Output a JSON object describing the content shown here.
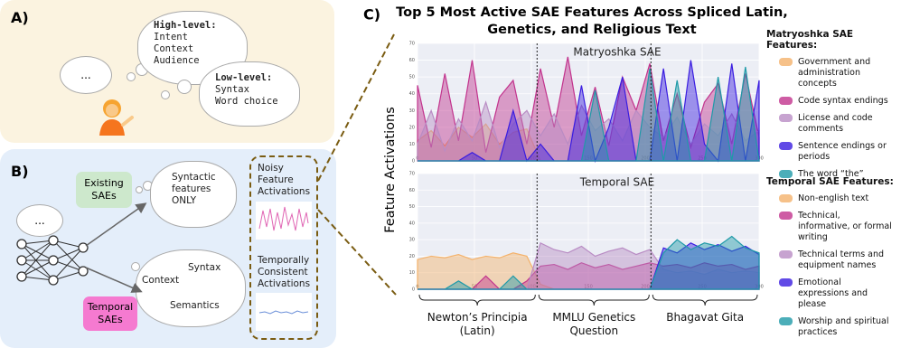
{
  "panel_a": {
    "label": "A)",
    "speech": "...",
    "high_level": {
      "heading": "High-level:",
      "items": [
        "Intent",
        "Context",
        "Audience"
      ]
    },
    "low_level": {
      "heading": "Low-level:",
      "items": [
        "Syntax",
        "Word choice"
      ]
    }
  },
  "panel_b": {
    "label": "B)",
    "speech": "...",
    "existing": {
      "label": "Existing SAEs",
      "thought": [
        "Syntactic",
        "features",
        "ONLY"
      ]
    },
    "temporal": {
      "label": "Temporal SAEs",
      "thought": [
        "Context",
        "Syntax",
        "Semantics"
      ]
    },
    "noisy": [
      "Noisy",
      "Feature",
      "Activations"
    ],
    "consistent": [
      "Temporally",
      "Consistent",
      "Activations"
    ]
  },
  "panel_c": {
    "label": "C)",
    "title": [
      "Top 5 Most Active SAE Features Across Spliced Latin,",
      "Genetics, and Religious Text"
    ],
    "y_label": "Feature Activations",
    "segments": [
      {
        "label": "Newton’s Principia (Latin)",
        "range": [
          0,
          105
        ]
      },
      {
        "label": "MMLU Genetics Question",
        "range": [
          105,
          205
        ]
      },
      {
        "label": "Bhagavat Gita",
        "range": [
          205,
          300
        ]
      }
    ]
  },
  "chart_data": [
    {
      "type": "area",
      "title": "Matryoshka SAE",
      "legend_title": "Matryoshka SAE Features:",
      "xlim": [
        0,
        300
      ],
      "xticks": [
        0,
        50,
        100,
        150,
        200,
        250,
        300
      ],
      "ylim": [
        0,
        70
      ],
      "yticks": [
        0,
        10,
        20,
        30,
        40,
        50,
        60,
        70
      ],
      "grid": true,
      "x": [
        0,
        12,
        24,
        36,
        48,
        60,
        72,
        84,
        96,
        108,
        120,
        132,
        144,
        156,
        168,
        180,
        192,
        204,
        216,
        228,
        240,
        252,
        264,
        276,
        288,
        300
      ],
      "series": [
        {
          "name": "Government and administration concepts",
          "color": "#f4b26b",
          "values": [
            12,
            18,
            9,
            20,
            14,
            22,
            10,
            17,
            19,
            0,
            0,
            0,
            0,
            0,
            0,
            0,
            0,
            0,
            0,
            0,
            0,
            0,
            0,
            0,
            0,
            0
          ]
        },
        {
          "name": "Code syntax endings",
          "color": "#c2338d",
          "values": [
            45,
            8,
            52,
            12,
            60,
            5,
            38,
            48,
            10,
            55,
            20,
            62,
            15,
            44,
            9,
            50,
            30,
            58,
            12,
            40,
            8,
            35,
            46,
            10,
            52,
            14
          ]
        },
        {
          "name": "License and code comments",
          "color": "#b98cc4",
          "values": [
            10,
            30,
            6,
            25,
            12,
            35,
            8,
            22,
            30,
            15,
            28,
            10,
            33,
            18,
            25,
            12,
            30,
            20,
            14,
            26,
            10,
            22,
            15,
            28,
            12,
            18
          ]
        },
        {
          "name": "Sentence endings or periods",
          "color": "#3a1de0",
          "values": [
            0,
            0,
            0,
            0,
            5,
            0,
            0,
            30,
            0,
            10,
            0,
            0,
            45,
            0,
            20,
            50,
            0,
            0,
            55,
            0,
            60,
            10,
            0,
            58,
            0,
            48
          ]
        },
        {
          "name": "The word “the”",
          "color": "#1f9aa8",
          "values": [
            0,
            0,
            0,
            0,
            0,
            0,
            0,
            0,
            0,
            0,
            0,
            0,
            0,
            42,
            0,
            0,
            0,
            55,
            0,
            48,
            0,
            0,
            50,
            0,
            56,
            0
          ]
        }
      ]
    },
    {
      "type": "area",
      "title": "Temporal SAE",
      "legend_title": "Temporal SAE Features:",
      "xlim": [
        0,
        300
      ],
      "xticks": [
        0,
        50,
        100,
        150,
        200,
        250,
        300
      ],
      "ylim": [
        0,
        70
      ],
      "yticks": [
        0,
        10,
        20,
        30,
        40,
        50,
        60,
        70
      ],
      "grid": true,
      "x": [
        0,
        12,
        24,
        36,
        48,
        60,
        72,
        84,
        96,
        108,
        120,
        132,
        144,
        156,
        168,
        180,
        192,
        204,
        216,
        228,
        240,
        252,
        264,
        276,
        288,
        300
      ],
      "series": [
        {
          "name": "Non-english text",
          "color": "#f4b26b",
          "values": [
            18,
            20,
            19,
            21,
            18,
            20,
            19,
            22,
            20,
            3,
            0,
            0,
            0,
            0,
            0,
            0,
            0,
            0,
            0,
            0,
            0,
            0,
            0,
            0,
            0,
            0
          ]
        },
        {
          "name": "Technical, informative, or formal writing",
          "color": "#c2338d",
          "values": [
            0,
            0,
            0,
            0,
            0,
            8,
            0,
            0,
            5,
            14,
            15,
            12,
            16,
            13,
            15,
            12,
            14,
            16,
            14,
            15,
            13,
            16,
            14,
            15,
            12,
            14
          ]
        },
        {
          "name": "Technical terms and equipment names",
          "color": "#b98cc4",
          "values": [
            0,
            0,
            0,
            0,
            0,
            0,
            0,
            0,
            0,
            28,
            24,
            22,
            26,
            20,
            23,
            25,
            21,
            24,
            12,
            10,
            11,
            9,
            12,
            10,
            11,
            10
          ]
        },
        {
          "name": "Emotional expressions and please",
          "color": "#3a1de0",
          "values": [
            0,
            0,
            0,
            0,
            0,
            0,
            0,
            0,
            0,
            0,
            0,
            0,
            0,
            0,
            0,
            0,
            0,
            0,
            25,
            22,
            28,
            24,
            27,
            23,
            26,
            21
          ]
        },
        {
          "name": "Worship and spiritual practices",
          "color": "#1f9aa8",
          "values": [
            0,
            0,
            0,
            5,
            0,
            0,
            0,
            8,
            0,
            0,
            0,
            0,
            0,
            0,
            0,
            0,
            0,
            0,
            22,
            30,
            24,
            28,
            26,
            32,
            25,
            22
          ]
        }
      ]
    }
  ]
}
